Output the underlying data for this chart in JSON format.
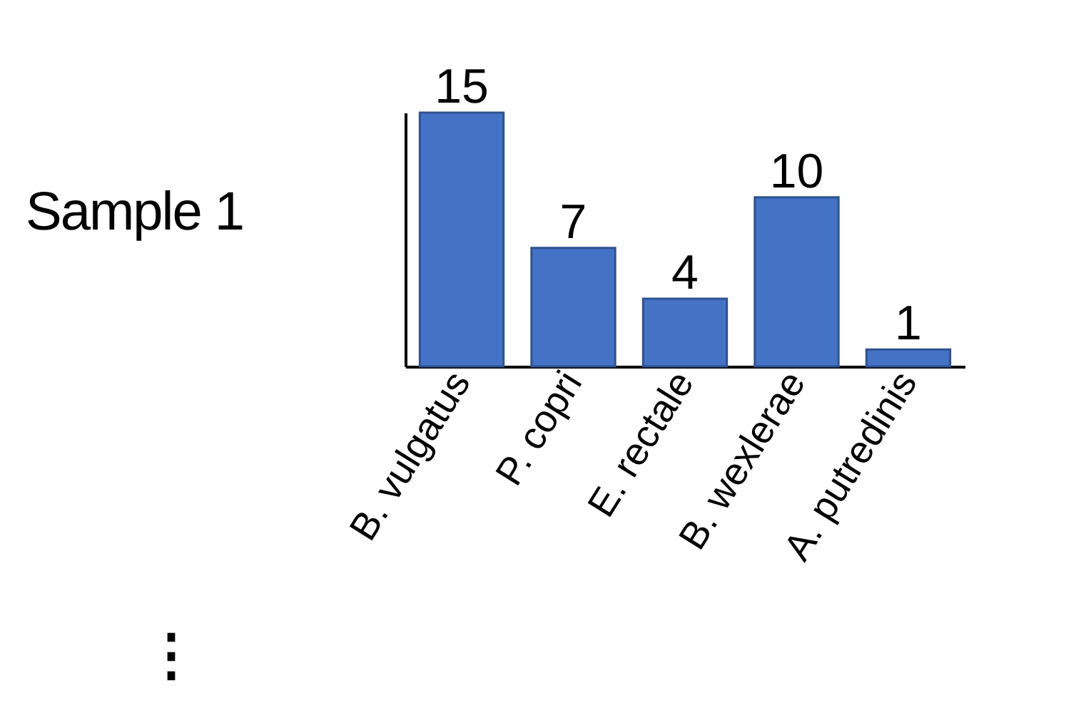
{
  "chart_data": {
    "type": "bar",
    "title": "Sample 1",
    "categories": [
      "B. vulgatus",
      "P. copri",
      "E. rectale",
      "B. wexlerae",
      "A. putredinis"
    ],
    "values": [
      15,
      7,
      4,
      10,
      1
    ],
    "color": "#4472c4",
    "data_labels": true,
    "annotations": [
      "⋮"
    ]
  }
}
